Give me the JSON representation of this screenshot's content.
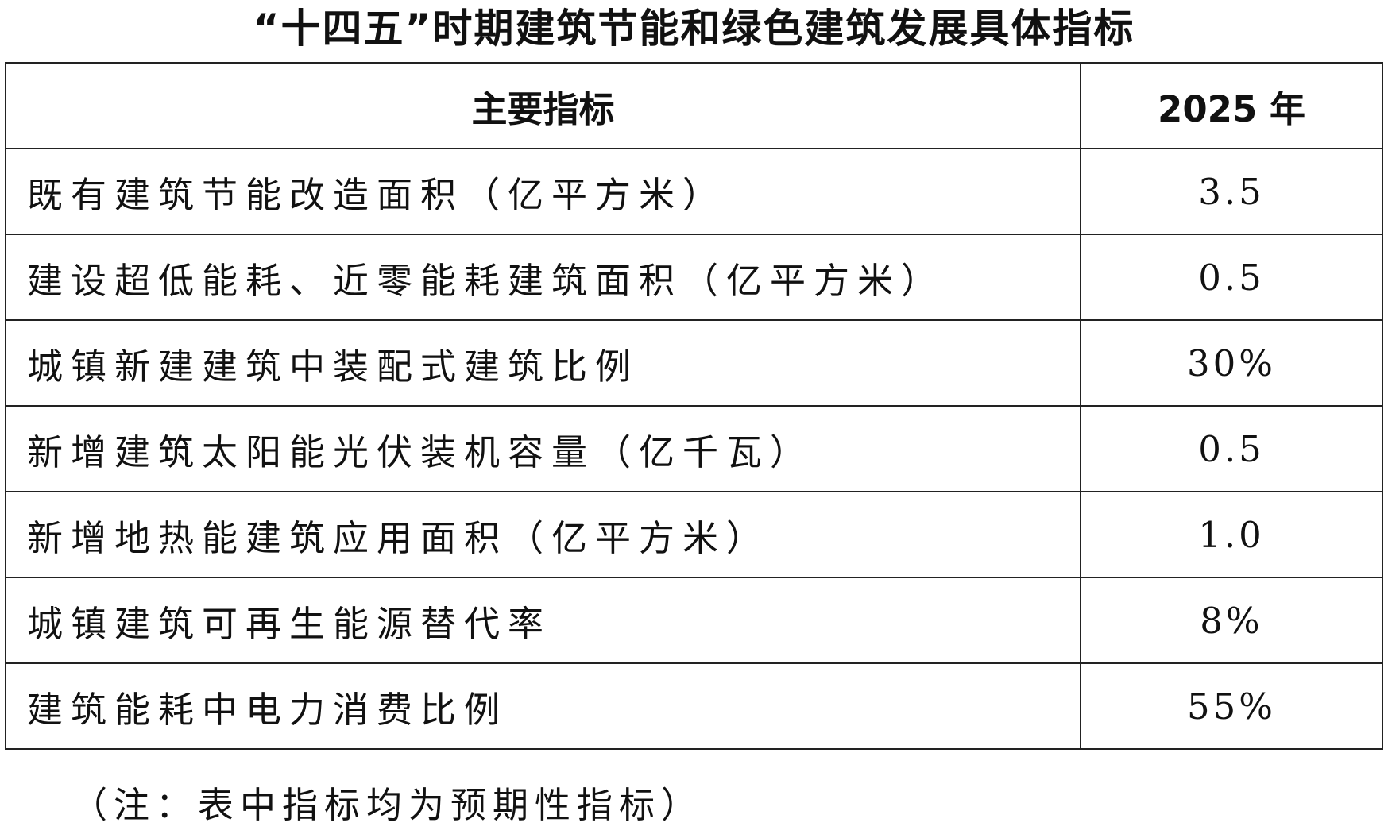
{
  "title": "“十四五”时期建筑节能和绿色建筑发展具体指标",
  "table": {
    "headers": [
      "主要指标",
      "2025 年"
    ],
    "rows": [
      {
        "indicator": "既有建筑节能改造面积（亿平方米）",
        "value": "3.5"
      },
      {
        "indicator": "建设超低能耗、近零能耗建筑面积（亿平方米）",
        "value": "0.5"
      },
      {
        "indicator": "城镇新建建筑中装配式建筑比例",
        "value": "30%"
      },
      {
        "indicator": "新增建筑太阳能光伏装机容量（亿千瓦）",
        "value": "0.5"
      },
      {
        "indicator": "新增地热能建筑应用面积（亿平方米）",
        "value": "1.0"
      },
      {
        "indicator": "城镇建筑可再生能源替代率",
        "value": "8%"
      },
      {
        "indicator": "建筑能耗中电力消费比例",
        "value": "55%"
      }
    ]
  },
  "note": "（注：表中指标均为预期性指标）"
}
